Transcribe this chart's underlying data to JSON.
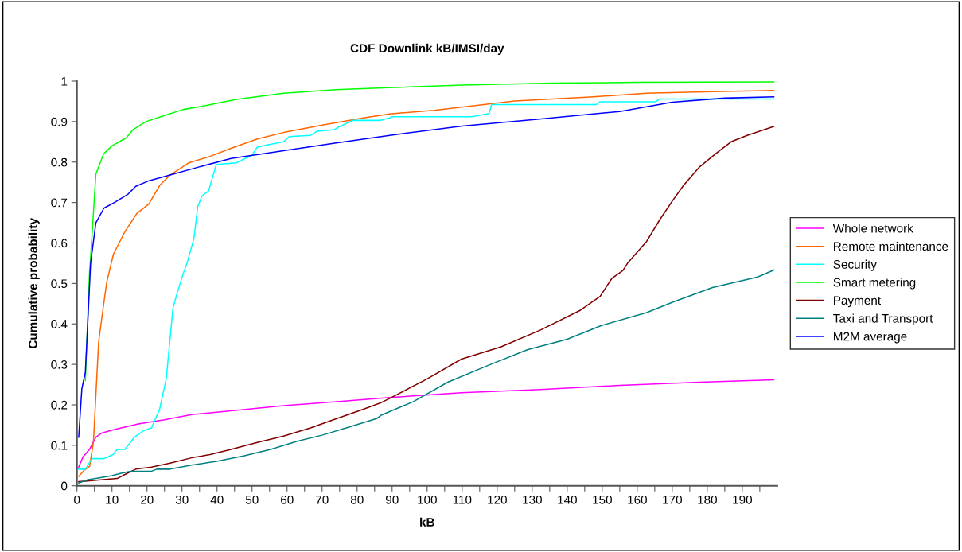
{
  "chart_data": {
    "type": "line",
    "title": "CDF Downlink kB/IMSI/day",
    "xlabel": "kB",
    "ylabel": "Cumulative probability",
    "xlim": [
      0,
      200
    ],
    "ylim": [
      0,
      1
    ],
    "xticks": [
      0,
      {
        "value": 5,
        "label": null
      },
      10,
      {
        "value": 15,
        "label": null
      },
      20,
      {
        "value": 25,
        "label": null
      },
      30,
      {
        "value": 35,
        "label": null
      },
      40,
      {
        "value": 45,
        "label": null
      },
      50,
      {
        "value": 55,
        "label": null
      },
      60,
      {
        "value": 65,
        "label": null
      },
      70,
      {
        "value": 75,
        "label": null
      },
      80,
      {
        "value": 85,
        "label": null
      },
      90,
      {
        "value": 95,
        "label": null
      },
      100,
      {
        "value": 105,
        "label": null
      },
      110,
      {
        "value": 115,
        "label": null
      },
      120,
      {
        "value": 125,
        "label": null
      },
      130,
      {
        "value": 135,
        "label": null
      },
      140,
      {
        "value": 145,
        "label": null
      },
      150,
      {
        "value": 155,
        "label": null
      },
      160,
      {
        "value": 165,
        "label": null
      },
      170,
      {
        "value": 175,
        "label": null
      },
      180,
      {
        "value": 185,
        "label": null
      },
      190,
      {
        "value": 195,
        "label": null
      }
    ],
    "yticks": [
      0,
      0.1,
      0.2,
      0.3,
      0.4,
      0.5,
      0.6,
      0.7,
      0.8,
      0.9,
      1
    ],
    "grid": false,
    "legend": "right",
    "marker": "none",
    "line_style": "solid",
    "series": [
      {
        "name": "Whole network",
        "color": "#ff00ff",
        "x": [
          0.5,
          1.7,
          3.6,
          5.4,
          7,
          10.7,
          17.5,
          25,
          32.7,
          44,
          59,
          74.2,
          89.3,
          109.8,
          132.4,
          155,
          177.8,
          199
        ],
        "values": [
          0.046,
          0.071,
          0.09,
          0.12,
          0.13,
          0.139,
          0.153,
          0.163,
          0.176,
          0.185,
          0.198,
          0.208,
          0.218,
          0.23,
          0.238,
          0.248,
          0.256,
          0.262
        ]
      },
      {
        "name": "Remote maintenance",
        "color": "#ff6600",
        "x": [
          0.5,
          2,
          3.6,
          4.7,
          6.2,
          7.3,
          8.5,
          10.4,
          13.7,
          17.1,
          20.5,
          23.6,
          26.6,
          31.9,
          38,
          44,
          51.5,
          59,
          70.4,
          81.8,
          89.3,
          102,
          125,
          147.5,
          162.6,
          181.5,
          199
        ],
        "values": [
          0.023,
          0.038,
          0.048,
          0.107,
          0.356,
          0.428,
          0.503,
          0.572,
          0.628,
          0.673,
          0.696,
          0.742,
          0.768,
          0.798,
          0.814,
          0.834,
          0.857,
          0.873,
          0.892,
          0.909,
          0.919,
          0.928,
          0.951,
          0.961,
          0.97,
          0.974,
          0.977
        ]
      },
      {
        "name": "Security",
        "color": "#00ffff",
        "x": [
          0.5,
          2.4,
          4.3,
          7.7,
          10.3,
          11.5,
          13.7,
          16.4,
          19,
          21.3,
          23.6,
          25.5,
          27.4,
          28.5,
          30.4,
          31.5,
          33.4,
          34.5,
          35.7,
          37.6,
          39.8,
          45.5,
          50,
          51.5,
          54.6,
          59,
          60.6,
          66.7,
          68.5,
          73.5,
          74.6,
          78.8,
          86.7,
          89.3,
          90,
          112.8,
          117.7,
          118.4,
          148.3,
          149.4,
          165.3,
          166.4,
          199
        ],
        "values": [
          0.041,
          0.041,
          0.067,
          0.067,
          0.077,
          0.09,
          0.09,
          0.12,
          0.136,
          0.143,
          0.189,
          0.264,
          0.438,
          0.473,
          0.526,
          0.552,
          0.611,
          0.69,
          0.716,
          0.729,
          0.794,
          0.798,
          0.817,
          0.837,
          0.843,
          0.85,
          0.863,
          0.866,
          0.876,
          0.88,
          0.886,
          0.903,
          0.903,
          0.909,
          0.912,
          0.912,
          0.92,
          0.942,
          0.942,
          0.949,
          0.949,
          0.956,
          0.956
        ]
      },
      {
        "name": "Smart metering",
        "color": "#00ff00",
        "x": [
          2.4,
          3.6,
          3.8,
          5.4,
          7.6,
          10,
          14.1,
          16,
          19.7,
          25,
          30.4,
          37,
          45.5,
          59,
          74,
          89,
          110,
          136,
          160,
          199
        ],
        "values": [
          0.26,
          0.53,
          0.55,
          0.77,
          0.82,
          0.84,
          0.86,
          0.88,
          0.9,
          0.915,
          0.93,
          0.94,
          0.955,
          0.97,
          0.979,
          0.984,
          0.99,
          0.995,
          0.997,
          0.998
        ]
      },
      {
        "name": "Payment",
        "color": "#800000",
        "x": [
          0.5,
          6.2,
          11.5,
          13.7,
          16.8,
          21.3,
          26.6,
          32.7,
          38,
          44,
          51.5,
          59,
          66.7,
          74.2,
          81.8,
          87,
          89.3,
          100,
          109.8,
          121,
          132.4,
          143.8,
          149.4,
          152.8,
          155.9,
          157.4,
          162.7,
          166.4,
          170.2,
          173.2,
          177.8,
          182.3,
          186.8,
          191.4,
          199
        ],
        "values": [
          0.01,
          0.014,
          0.018,
          0.028,
          0.041,
          0.046,
          0.056,
          0.069,
          0.077,
          0.09,
          0.107,
          0.123,
          0.143,
          0.166,
          0.189,
          0.206,
          0.216,
          0.264,
          0.313,
          0.343,
          0.385,
          0.434,
          0.468,
          0.513,
          0.532,
          0.552,
          0.604,
          0.657,
          0.706,
          0.742,
          0.788,
          0.82,
          0.85,
          0.866,
          0.888
        ]
      },
      {
        "name": "Taxi and Transport",
        "color": "#008080",
        "x": [
          0.5,
          3.2,
          5.4,
          10,
          12.6,
          15.3,
          21.3,
          22.8,
          26.6,
          32.7,
          40.2,
          47.8,
          55.3,
          62.9,
          70.4,
          78,
          85.6,
          87,
          96.1,
          105.9,
          117.3,
          128.6,
          140,
          149.8,
          162.7,
          170.2,
          181.5,
          194.4,
          199
        ],
        "values": [
          0.007,
          0.015,
          0.018,
          0.025,
          0.031,
          0.036,
          0.036,
          0.041,
          0.041,
          0.051,
          0.061,
          0.074,
          0.09,
          0.11,
          0.126,
          0.146,
          0.166,
          0.175,
          0.208,
          0.256,
          0.297,
          0.336,
          0.362,
          0.396,
          0.428,
          0.454,
          0.49,
          0.516,
          0.533
        ]
      },
      {
        "name": "M2M average",
        "color": "#0000ff",
        "x": [
          0.5,
          1.4,
          2.4,
          3.9,
          5.4,
          7.7,
          10.7,
          14.5,
          16.8,
          20.6,
          26.6,
          34.9,
          44,
          59,
          74,
          89.3,
          110,
          132,
          155,
          170,
          185,
          199
        ],
        "values": [
          0.12,
          0.24,
          0.28,
          0.55,
          0.65,
          0.686,
          0.7,
          0.72,
          0.74,
          0.754,
          0.768,
          0.788,
          0.809,
          0.828,
          0.847,
          0.866,
          0.889,
          0.906,
          0.925,
          0.948,
          0.958,
          0.961
        ]
      }
    ]
  }
}
